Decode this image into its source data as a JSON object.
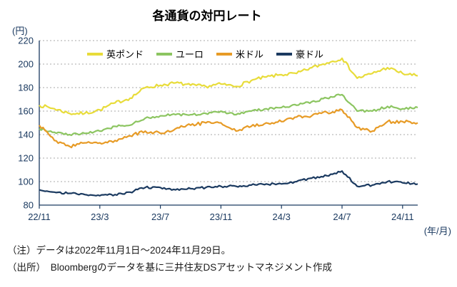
{
  "notes": [
    "（注）データは2022年11月1日～2024年11月29日。",
    "（出所）　Bloombergのデータを基に三井住友DSアセットマネジメント作成"
  ],
  "chart_data": {
    "type": "line",
    "title": "各通貨の対円レート",
    "ylabel": "(円)",
    "xlabel": "(年/月)",
    "ylim": [
      80,
      220
    ],
    "y_ticks": [
      80,
      100,
      120,
      140,
      160,
      180,
      200,
      220
    ],
    "grid": "horizontal-dotted",
    "legend_position": "top-inside",
    "x_range_months": 25,
    "x_ticks": [
      {
        "label": "22/11",
        "m": 0
      },
      {
        "label": "23/3",
        "m": 4
      },
      {
        "label": "23/7",
        "m": 8
      },
      {
        "label": "23/11",
        "m": 12
      },
      {
        "label": "24/3",
        "m": 16
      },
      {
        "label": "24/7",
        "m": 20
      },
      {
        "label": "24/11",
        "m": 24
      }
    ],
    "series": [
      {
        "name": "英ポンド",
        "color": "#e8dc3a",
        "values": [
          165,
          162,
          158,
          158,
          161,
          167,
          171,
          180,
          182,
          184,
          182,
          181,
          183,
          181,
          186,
          189,
          191,
          192,
          197,
          201,
          205,
          188,
          192,
          197,
          192,
          190
        ]
      },
      {
        "name": "ユーロ",
        "color": "#8cc561",
        "values": [
          145,
          142,
          140,
          141,
          143,
          147,
          148,
          154,
          156,
          157,
          157,
          158,
          160,
          157,
          160,
          162,
          163,
          165,
          168,
          171,
          174,
          160,
          160,
          164,
          162,
          163
        ]
      },
      {
        "name": "米ドル",
        "color": "#e79b26",
        "values": [
          148,
          135,
          130,
          133,
          133,
          135,
          139,
          143,
          141,
          145,
          148,
          150,
          150,
          143,
          147,
          150,
          151,
          155,
          156,
          159,
          161,
          146,
          143,
          151,
          151,
          150
        ]
      },
      {
        "name": "豪ドル",
        "color": "#1b3a60",
        "values": [
          93,
          91,
          90,
          89,
          88,
          89,
          91,
          95,
          95,
          93,
          94,
          95,
          96,
          96,
          97,
          98,
          98,
          100,
          103,
          105,
          109,
          96,
          97,
          100,
          99,
          98
        ]
      }
    ]
  }
}
